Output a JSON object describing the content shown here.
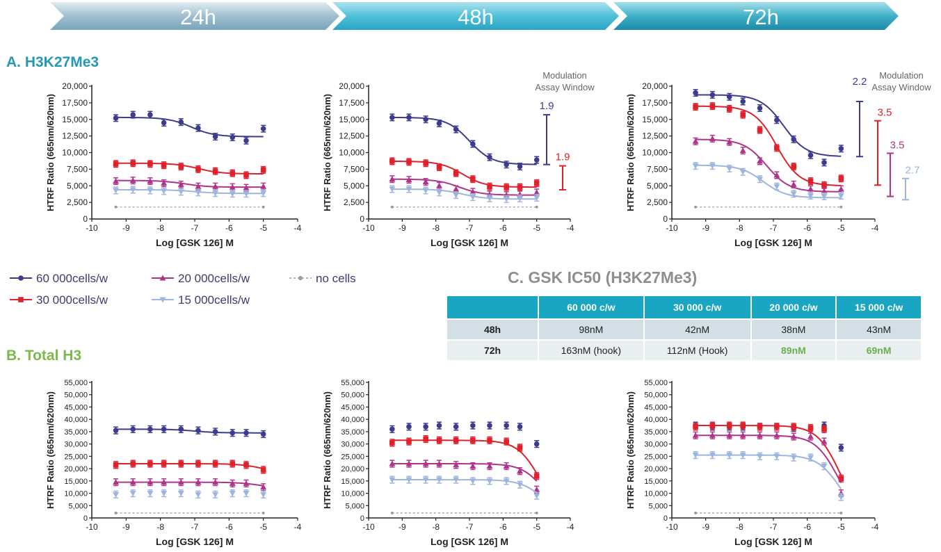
{
  "banners": [
    "24h",
    "48h",
    "72h"
  ],
  "sections": {
    "a": "A. H3K27Me3",
    "b": "B. Total H3",
    "c": "C. GSK IC50 (H3K27Me3)"
  },
  "legend": [
    {
      "label": "60 000cells/w",
      "color": "#3d3b8e",
      "marker": "circle"
    },
    {
      "label": "30 000cells/w",
      "color": "#e0202a",
      "marker": "square"
    },
    {
      "label": "20 000cells/w",
      "color": "#b0338a",
      "marker": "triangle-up"
    },
    {
      "label": "15 000cells/w",
      "color": "#9db4dc",
      "marker": "triangle-down"
    },
    {
      "label": "no cells",
      "color": "#9a9a9a",
      "marker": "dash-dot"
    }
  ],
  "table": {
    "headers": [
      "",
      "60 000 c/w",
      "30 000 c/w",
      "20 000 c/w",
      "15 000 c/w"
    ],
    "rows": [
      {
        "label": "48h",
        "cells": [
          "98nM",
          "42nM",
          "38nM",
          "43nM"
        ]
      },
      {
        "label": "72h",
        "cells": [
          "163nM (hook)",
          "112nM (Hook)",
          "89nM",
          "69nM"
        ]
      }
    ],
    "highlight_color": "#6ab04c"
  },
  "chart_data": [
    {
      "id": "a24",
      "type": "scatter",
      "panel": "A. H3K27Me3",
      "timepoint": "24h",
      "xlabel": "Log [GSK 126] M",
      "ylabel": "HTRF Ratio (665nm/620nm)",
      "xlim": [
        -10,
        -4
      ],
      "ylim": [
        0,
        20000
      ],
      "xticks": [
        -10,
        -9,
        -8,
        -7,
        -6,
        -5,
        -4
      ],
      "yticks": [
        0,
        2500,
        5000,
        7500,
        10000,
        12500,
        15000,
        17500,
        20000
      ],
      "x": [
        -9.3,
        -8.8,
        -8.3,
        -7.9,
        -7.4,
        -6.9,
        -6.4,
        -5.9,
        -5.5,
        -5.0
      ],
      "series": [
        {
          "name": "60 000cells/w",
          "values": [
            15200,
            15700,
            15700,
            14500,
            14600,
            13700,
            12400,
            12300,
            11800,
            13600
          ],
          "curve": [
            15300,
            12400,
            -7.1
          ]
        },
        {
          "name": "30 000cells/w",
          "values": [
            8300,
            8400,
            8300,
            8100,
            7900,
            7500,
            7200,
            6900,
            6600,
            7400
          ],
          "curve": [
            8400,
            6800,
            -6.9
          ]
        },
        {
          "name": "20 000cells/w",
          "values": [
            5700,
            5800,
            5700,
            5400,
            5200,
            4900,
            4900,
            4800,
            4700,
            4900
          ],
          "curve": [
            5800,
            4800,
            -7.3
          ]
        },
        {
          "name": "15 000cells/w",
          "values": [
            4300,
            4400,
            4300,
            4200,
            4100,
            4000,
            3900,
            3800,
            3800,
            3900
          ],
          "curve": [
            4400,
            3850,
            -7.0
          ]
        },
        {
          "name": "no cells",
          "values": [
            1800,
            1800,
            1800,
            1800,
            1800,
            1800,
            1800,
            1800,
            1800,
            1800
          ]
        }
      ]
    },
    {
      "id": "a48",
      "type": "scatter",
      "panel": "A. H3K27Me3",
      "timepoint": "48h",
      "xlabel": "Log [GSK 126] M",
      "ylabel": "HTRF Ratio (665nm/620nm)",
      "xlim": [
        -10,
        -4
      ],
      "ylim": [
        0,
        20000
      ],
      "xticks": [
        -10,
        -9,
        -8,
        -7,
        -6,
        -5,
        -4
      ],
      "yticks": [
        0,
        2500,
        5000,
        7500,
        10000,
        12500,
        15000,
        17500,
        20000
      ],
      "x": [
        -9.3,
        -8.8,
        -8.3,
        -7.9,
        -7.4,
        -6.9,
        -6.4,
        -5.9,
        -5.5,
        -5.0
      ],
      "series": [
        {
          "name": "60 000cells/w",
          "values": [
            15300,
            15300,
            15000,
            14400,
            13500,
            11300,
            9300,
            8200,
            7900,
            8900
          ],
          "curve": [
            15300,
            8200,
            -7.0
          ]
        },
        {
          "name": "30 000cells/w",
          "values": [
            8700,
            8600,
            8400,
            7800,
            6900,
            6000,
            4900,
            4800,
            4800,
            5400
          ],
          "curve": [
            8700,
            4800,
            -7.2
          ]
        },
        {
          "name": "20 000cells/w",
          "values": [
            6000,
            5900,
            5600,
            5000,
            4500,
            4100,
            3700,
            3600,
            3700,
            4000
          ],
          "curve": [
            6000,
            3600,
            -7.3
          ]
        },
        {
          "name": "15 000cells/w",
          "values": [
            4500,
            4500,
            4300,
            4000,
            3600,
            3300,
            3100,
            3000,
            3100,
            3200
          ],
          "curve": [
            4500,
            3000,
            -7.2
          ]
        },
        {
          "name": "no cells",
          "values": [
            1800,
            1800,
            1800,
            1800,
            1800,
            1800,
            1800,
            1800,
            1800,
            1800
          ]
        }
      ],
      "annotation_title": [
        "Modulation",
        "Assay Window"
      ],
      "annotations": [
        {
          "text": "1.9",
          "series": "60 000cells/w",
          "range": [
            8200,
            15700
          ]
        },
        {
          "text": "1.9",
          "series": "30 000cells/w",
          "range": [
            4400,
            8000
          ]
        }
      ]
    },
    {
      "id": "a72",
      "type": "scatter",
      "panel": "A. H3K27Me3",
      "timepoint": "72h",
      "xlabel": "Log [GSK 126] M",
      "ylabel": "HTRF Ratio (665nm/620nm)",
      "xlim": [
        -10,
        -4
      ],
      "ylim": [
        0,
        20000
      ],
      "xticks": [
        -10,
        -9,
        -8,
        -7,
        -6,
        -5,
        -4
      ],
      "yticks": [
        0,
        2500,
        5000,
        7500,
        10000,
        12500,
        15000,
        17500,
        20000
      ],
      "x": [
        -9.3,
        -8.8,
        -8.3,
        -7.9,
        -7.4,
        -6.9,
        -6.4,
        -5.9,
        -5.5,
        -5.0
      ],
      "series": [
        {
          "name": "60 000cells/w",
          "values": [
            19000,
            18700,
            18400,
            17700,
            16700,
            14900,
            12000,
            9600,
            8500,
            10600
          ],
          "curve": [
            18700,
            9400,
            -6.7
          ]
        },
        {
          "name": "30 000cells/w",
          "values": [
            16900,
            17000,
            16600,
            15700,
            13400,
            10700,
            7900,
            5700,
            5100,
            6100
          ],
          "curve": [
            17000,
            5000,
            -6.9
          ]
        },
        {
          "name": "20 000cells/w",
          "values": [
            11700,
            12100,
            11600,
            10300,
            8700,
            6600,
            5200,
            4500,
            4200,
            4500
          ],
          "curve": [
            12000,
            4100,
            -7.2
          ]
        },
        {
          "name": "15 000cells/w",
          "values": [
            8000,
            8000,
            7600,
            7100,
            6000,
            4900,
            3800,
            3500,
            3400,
            3500
          ],
          "curve": [
            8100,
            3200,
            -7.3
          ]
        },
        {
          "name": "no cells",
          "values": [
            1800,
            1800,
            1800,
            1800,
            1800,
            1800,
            1800,
            1800,
            1800,
            1800
          ]
        }
      ],
      "annotation_title": [
        "Modulation",
        "Assay Window"
      ],
      "annotations": [
        {
          "text": "2.2",
          "series": "60 000cells/w",
          "range": [
            9400,
            17700
          ]
        },
        {
          "text": "3.5",
          "series": "30 000cells/w",
          "range": [
            5100,
            14800
          ]
        },
        {
          "text": "3.5",
          "series": "20 000cells/w",
          "range": [
            3400,
            9900
          ]
        },
        {
          "text": "2.7",
          "series": "15 000cells/w",
          "range": [
            2900,
            6100
          ]
        }
      ]
    },
    {
      "id": "b24",
      "type": "scatter",
      "panel": "B. Total H3",
      "timepoint": "24h",
      "xlabel": "Log [GSK 126] M",
      "ylabel": "HTRF Ratio (665nm/620nm)",
      "xlim": [
        -10,
        -4
      ],
      "ylim": [
        0,
        55000
      ],
      "xticks": [
        -10,
        -9,
        -8,
        -7,
        -6,
        -5,
        -4
      ],
      "yticks": [
        0,
        5000,
        10000,
        15000,
        20000,
        25000,
        30000,
        35000,
        40000,
        45000,
        50000,
        55000
      ],
      "x": [
        -9.3,
        -8.8,
        -8.3,
        -7.9,
        -7.4,
        -6.9,
        -6.4,
        -5.9,
        -5.5,
        -5.0
      ],
      "series": [
        {
          "name": "60 000cells/w",
          "values": [
            35500,
            36000,
            36000,
            36000,
            36000,
            35500,
            35000,
            34500,
            34500,
            34000
          ],
          "curve": [
            36000,
            34500,
            -7.0
          ]
        },
        {
          "name": "30 000cells/w",
          "values": [
            21500,
            22000,
            22000,
            22000,
            22000,
            22000,
            22000,
            22000,
            21500,
            19500
          ],
          "curve": [
            22000,
            18000,
            -5.0
          ]
        },
        {
          "name": "20 000cells/w",
          "values": [
            14500,
            14500,
            14500,
            14500,
            14500,
            14500,
            14500,
            14000,
            14000,
            12500
          ],
          "curve": [
            14500,
            12000,
            -5.1
          ]
        },
        {
          "name": "15 000cells/w",
          "values": [
            9500,
            10000,
            10000,
            10000,
            10000,
            9500,
            9500,
            10000,
            10000,
            9500
          ]
        },
        {
          "name": "no cells",
          "values": [
            2000,
            2000,
            2000,
            2000,
            2000,
            2000,
            2000,
            2000,
            2000,
            2000
          ]
        }
      ]
    },
    {
      "id": "b48",
      "type": "scatter",
      "panel": "B. Total H3",
      "timepoint": "48h",
      "xlabel": "Log [GSK 126] M",
      "ylabel": "HTRF Ratio (665nm/620nm)",
      "xlim": [
        -10,
        -4
      ],
      "ylim": [
        0,
        55000
      ],
      "xticks": [
        -10,
        -9,
        -8,
        -7,
        -6,
        -5,
        -4
      ],
      "yticks": [
        0,
        5000,
        10000,
        15000,
        20000,
        25000,
        30000,
        35000,
        40000,
        45000,
        50000,
        55000
      ],
      "x": [
        -9.3,
        -8.8,
        -8.3,
        -7.9,
        -7.4,
        -6.9,
        -6.4,
        -5.9,
        -5.5,
        -5.0
      ],
      "series": [
        {
          "name": "60 000cells/w",
          "values": [
            36000,
            37000,
            37000,
            37500,
            37000,
            37500,
            37500,
            37500,
            37000,
            30000
          ]
        },
        {
          "name": "30 000cells/w",
          "values": [
            30500,
            31000,
            32000,
            31500,
            31500,
            31500,
            31500,
            31000,
            28500,
            17000
          ],
          "curve": [
            31500,
            0,
            -4.9
          ]
        },
        {
          "name": "20 000cells/w",
          "values": [
            22000,
            22000,
            22000,
            22000,
            21500,
            21000,
            21000,
            21000,
            19000,
            11500
          ],
          "curve": [
            22000,
            0,
            -4.75
          ]
        },
        {
          "name": "15 000cells/w",
          "values": [
            15500,
            15500,
            15500,
            15500,
            15500,
            15000,
            15000,
            15000,
            13500,
            9000
          ],
          "curve": [
            15500,
            2000,
            -4.85
          ]
        },
        {
          "name": "no cells",
          "values": [
            2000,
            2000,
            2000,
            2000,
            2000,
            2000,
            2000,
            2000,
            2000,
            2000
          ]
        }
      ]
    },
    {
      "id": "b72",
      "type": "scatter",
      "panel": "B. Total H3",
      "timepoint": "72h",
      "xlabel": "Log [GSK 126] M",
      "ylabel": "HTRF Ratio (665nm/620nm)",
      "xlim": [
        -10,
        -4
      ],
      "ylim": [
        0,
        55000
      ],
      "xticks": [
        -10,
        -9,
        -8,
        -7,
        -6,
        -5,
        -4
      ],
      "yticks": [
        0,
        5000,
        10000,
        15000,
        20000,
        25000,
        30000,
        35000,
        40000,
        45000,
        50000,
        55000
      ],
      "x": [
        -9.3,
        -8.8,
        -8.3,
        -7.9,
        -7.4,
        -6.9,
        -6.4,
        -5.9,
        -5.5,
        -5.0
      ],
      "series": [
        {
          "name": "60 000cells/w",
          "values": [
            37500,
            37000,
            37000,
            37000,
            37000,
            37000,
            36500,
            36500,
            37500,
            28500
          ]
        },
        {
          "name": "30 000cells/w",
          "values": [
            37000,
            37500,
            37500,
            37500,
            37000,
            37000,
            37000,
            36500,
            36000,
            16000
          ],
          "curve": [
            37500,
            0,
            -5.05
          ]
        },
        {
          "name": "20 000cells/w",
          "values": [
            33500,
            33500,
            33500,
            33500,
            33500,
            33500,
            33000,
            33000,
            31000,
            10000
          ],
          "curve": [
            33500,
            0,
            -5.1
          ]
        },
        {
          "name": "15 000cells/w",
          "values": [
            25500,
            25500,
            25500,
            25500,
            25000,
            25000,
            24500,
            24500,
            21000,
            8500
          ],
          "curve": [
            25500,
            0,
            -5.05
          ]
        },
        {
          "name": "no cells",
          "values": [
            2000,
            2000,
            2000,
            2000,
            2000,
            2000,
            2000,
            2000,
            2000,
            2000
          ]
        }
      ]
    }
  ]
}
